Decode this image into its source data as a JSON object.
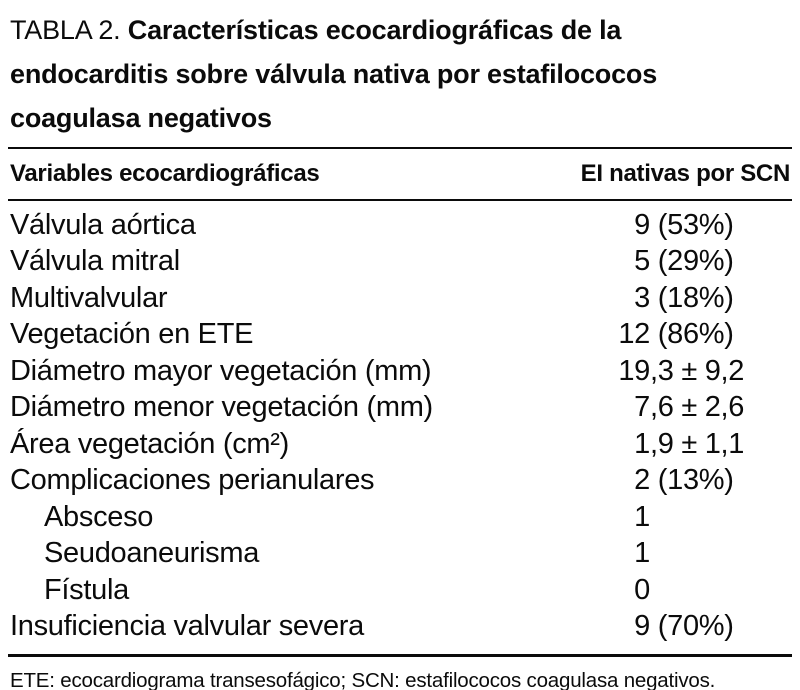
{
  "title": {
    "prefix": "TABLA 2.",
    "text": "Características ecocardiográficas de la endocarditis sobre válvula nativa por estafilococos coagulasa negativos"
  },
  "table": {
    "col_headers": [
      "Variables ecocardiográficas",
      "EI nativas por SCN"
    ],
    "rows": [
      {
        "label": "Válvula aórtica",
        "value": "9 (53%)",
        "indent": false
      },
      {
        "label": "Válvula mitral",
        "value": "5 (29%)",
        "indent": false
      },
      {
        "label": "Multivalvular",
        "value": "3 (18%)",
        "indent": false
      },
      {
        "label": "Vegetación en ETE",
        "value": "12 (86%)",
        "indent": false
      },
      {
        "label": "Diámetro mayor vegetación (mm)",
        "value": "19,3 ± 9,2",
        "indent": false
      },
      {
        "label": "Diámetro menor vegetación (mm)",
        "value": "7,6 ± 2,6",
        "indent": false
      },
      {
        "label": "Área vegetación (cm²)",
        "value": "1,9 ± 1,1",
        "indent": false
      },
      {
        "label": "Complicaciones perianulares",
        "value": "2 (13%)",
        "indent": false
      },
      {
        "label": "Absceso",
        "value": "1",
        "indent": true
      },
      {
        "label": "Seudoaneurisma",
        "value": "1",
        "indent": true
      },
      {
        "label": "Fístula",
        "value": "0",
        "indent": true
      },
      {
        "label": "Insuficiencia valvular severa",
        "value": "9 (70%)",
        "indent": false
      }
    ]
  },
  "footnote": "ETE: ecocardiograma transesofágico; SCN: estafilococos coagulasa negativos.",
  "colors": {
    "text": "#0b0b0b",
    "background": "#ffffff",
    "rule": "#0b0b0b"
  }
}
